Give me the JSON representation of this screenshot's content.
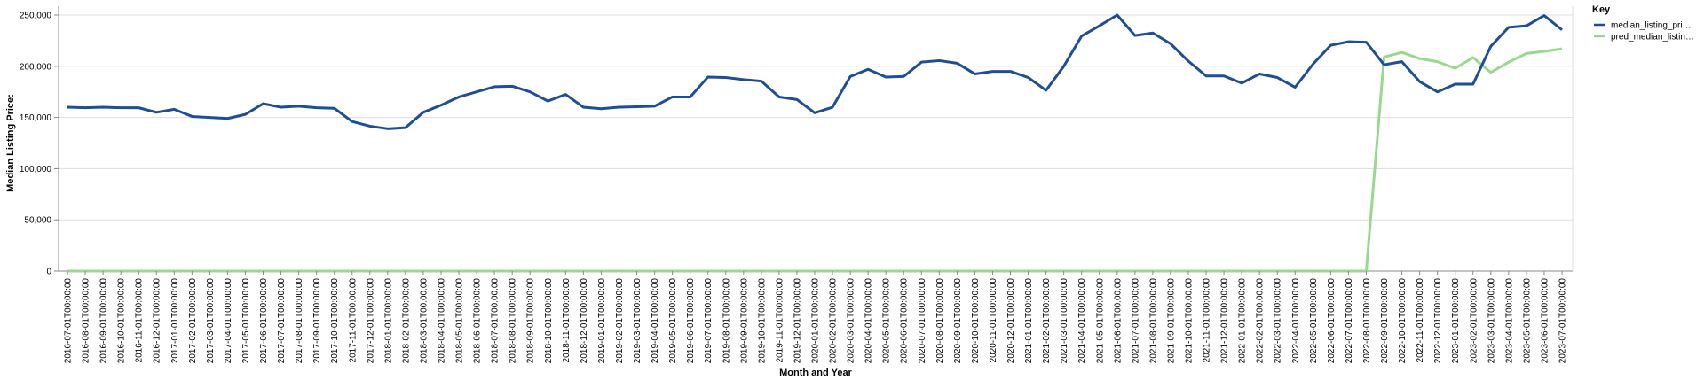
{
  "chart_data": {
    "type": "line",
    "xlabel": "Month and Year",
    "ylabel": "Median Listing Price:",
    "ylim": [
      0,
      250000
    ],
    "yticks": [
      "0",
      "50,000",
      "100,000",
      "150,000",
      "200,000",
      "250,000"
    ],
    "yticks_values": [
      0,
      50000,
      100000,
      150000,
      200000,
      250000
    ],
    "grid": true,
    "legend_title": "Key",
    "legend_position": "top-right",
    "x": [
      "2016-07-01T00:00:00",
      "2016-08-01T00:00:00",
      "2016-09-01T00:00:00",
      "2016-10-01T00:00:00",
      "2016-11-01T00:00:00",
      "2016-12-01T00:00:00",
      "2017-01-01T00:00:00",
      "2017-02-01T00:00:00",
      "2017-03-01T00:00:00",
      "2017-04-01T00:00:00",
      "2017-05-01T00:00:00",
      "2017-06-01T00:00:00",
      "2017-07-01T00:00:00",
      "2017-08-01T00:00:00",
      "2017-09-01T00:00:00",
      "2017-10-01T00:00:00",
      "2017-11-01T00:00:00",
      "2017-12-01T00:00:00",
      "2018-01-01T00:00:00",
      "2018-02-01T00:00:00",
      "2018-03-01T00:00:00",
      "2018-04-01T00:00:00",
      "2018-05-01T00:00:00",
      "2018-06-01T00:00:00",
      "2018-07-01T00:00:00",
      "2018-08-01T00:00:00",
      "2018-09-01T00:00:00",
      "2018-10-01T00:00:00",
      "2018-11-01T00:00:00",
      "2018-12-01T00:00:00",
      "2019-01-01T00:00:00",
      "2019-02-01T00:00:00",
      "2019-03-01T00:00:00",
      "2019-04-01T00:00:00",
      "2019-05-01T00:00:00",
      "2019-06-01T00:00:00",
      "2019-07-01T00:00:00",
      "2019-08-01T00:00:00",
      "2019-09-01T00:00:00",
      "2019-10-01T00:00:00",
      "2019-11-01T00:00:00",
      "2019-12-01T00:00:00",
      "2020-01-01T00:00:00",
      "2020-02-01T00:00:00",
      "2020-03-01T00:00:00",
      "2020-04-01T00:00:00",
      "2020-05-01T00:00:00",
      "2020-06-01T00:00:00",
      "2020-07-01T00:00:00",
      "2020-08-01T00:00:00",
      "2020-09-01T00:00:00",
      "2020-10-01T00:00:00",
      "2020-11-01T00:00:00",
      "2020-12-01T00:00:00",
      "2021-01-01T00:00:00",
      "2021-02-01T00:00:00",
      "2021-03-01T00:00:00",
      "2021-04-01T00:00:00",
      "2021-05-01T00:00:00",
      "2021-06-01T00:00:00",
      "2021-07-01T00:00:00",
      "2021-08-01T00:00:00",
      "2021-09-01T00:00:00",
      "2021-10-01T00:00:00",
      "2021-11-01T00:00:00",
      "2021-12-01T00:00:00",
      "2022-01-01T00:00:00",
      "2022-02-01T00:00:00",
      "2022-03-01T00:00:00",
      "2022-04-01T00:00:00",
      "2022-05-01T00:00:00",
      "2022-06-01T00:00:00",
      "2022-07-01T00:00:00",
      "2022-08-01T00:00:00",
      "2022-09-01T00:00:00",
      "2022-10-01T00:00:00",
      "2022-11-01T00:00:00",
      "2022-12-01T00:00:00",
      "2023-01-01T00:00:00",
      "2023-02-01T00:00:00",
      "2023-03-01T00:00:00",
      "2023-04-01T00:00:00",
      "2023-05-01T00:00:00",
      "2023-06-01T00:00:00",
      "2023-07-01T00:00:00"
    ],
    "series": [
      {
        "name": "median_listing_pri…",
        "color": "#1f4e99",
        "values": [
          160000,
          159500,
          160000,
          159500,
          159500,
          155000,
          158000,
          151000,
          150000,
          149000,
          153000,
          163500,
          160000,
          161000,
          159500,
          159000,
          146000,
          141500,
          139000,
          140000,
          155000,
          162000,
          170000,
          175000,
          180000,
          180500,
          175000,
          166000,
          172500,
          160000,
          158500,
          160000,
          160500,
          161000,
          170000,
          170000,
          189500,
          189000,
          187000,
          185500,
          170000,
          167500,
          154500,
          160000,
          190000,
          197000,
          189500,
          190000,
          204000,
          205500,
          203000,
          192500,
          195000,
          195000,
          189000,
          176500,
          200000,
          229500,
          239500,
          250000,
          230000,
          232500,
          222000,
          205000,
          190500,
          190500,
          183500,
          192500,
          189000,
          179500,
          202000,
          220500,
          224000,
          223500,
          201500,
          204500,
          185000,
          175000,
          182500,
          182500,
          219500,
          238000,
          239500,
          249500,
          235500
        ]
      },
      {
        "name": "pred_median_listin…",
        "color": "#98d98e",
        "values": [
          0,
          0,
          0,
          0,
          0,
          0,
          0,
          0,
          0,
          0,
          0,
          0,
          0,
          0,
          0,
          0,
          0,
          0,
          0,
          0,
          0,
          0,
          0,
          0,
          0,
          0,
          0,
          0,
          0,
          0,
          0,
          0,
          0,
          0,
          0,
          0,
          0,
          0,
          0,
          0,
          0,
          0,
          0,
          0,
          0,
          0,
          0,
          0,
          0,
          0,
          0,
          0,
          0,
          0,
          0,
          0,
          0,
          0,
          0,
          0,
          0,
          0,
          0,
          0,
          0,
          0,
          0,
          0,
          0,
          0,
          0,
          0,
          0,
          0,
          209000,
          213500,
          207500,
          204500,
          198000,
          208500,
          194000,
          204000,
          212500,
          214500,
          217000
        ]
      }
    ]
  }
}
